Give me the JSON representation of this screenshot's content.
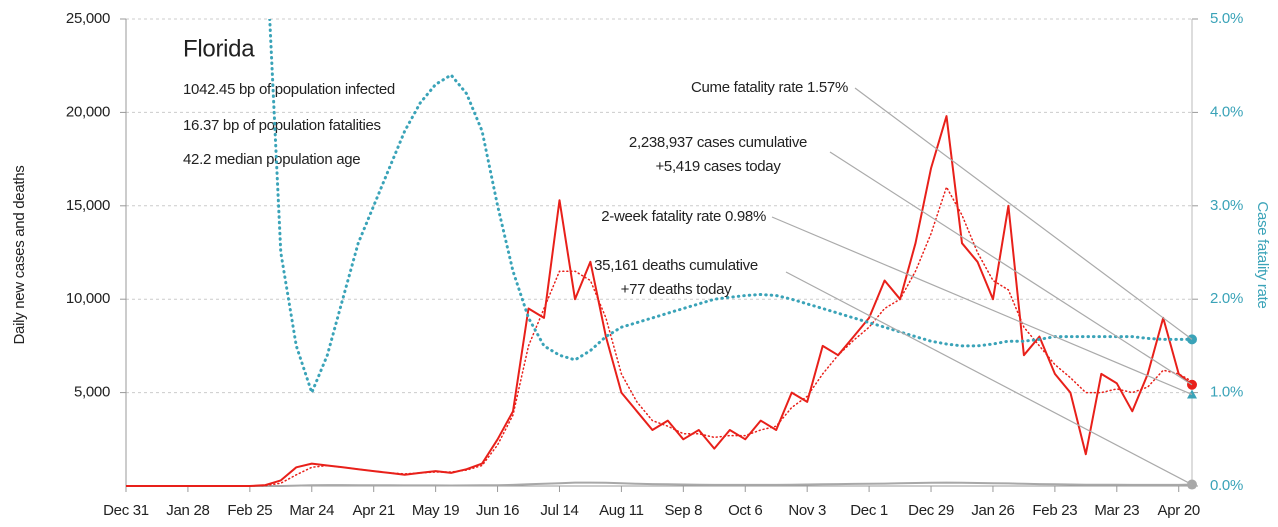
{
  "chart_data": {
    "type": "line",
    "info": {
      "title": "Florida",
      "lines": [
        "1042.45 bp of population infected",
        "16.37 bp of population fatalities",
        "42.2 median population age"
      ]
    },
    "ylabel": "Daily new cases and deaths",
    "y2label": "Case fatality rate",
    "x": [
      0,
      56,
      63,
      70,
      77,
      84,
      91,
      98,
      105,
      112,
      119,
      126,
      133,
      140,
      147,
      154,
      161,
      168,
      175,
      182,
      189,
      196,
      203,
      210,
      217,
      224,
      231,
      238,
      245,
      252,
      259,
      266,
      273,
      280,
      287,
      294,
      301,
      308,
      315,
      322,
      329,
      336,
      343,
      350,
      357,
      364,
      371,
      378,
      385,
      392,
      399,
      406,
      413,
      420,
      427,
      434,
      441,
      448,
      455,
      462,
      469,
      476,
      482
    ],
    "xlim": [
      0,
      482
    ],
    "xticks": [
      {
        "value": 0,
        "label": "Dec 31"
      },
      {
        "value": 28,
        "label": "Jan 28"
      },
      {
        "value": 56,
        "label": "Feb 25"
      },
      {
        "value": 84,
        "label": "Mar 24"
      },
      {
        "value": 112,
        "label": "Apr 21"
      },
      {
        "value": 140,
        "label": "May 19"
      },
      {
        "value": 168,
        "label": "Jun 16"
      },
      {
        "value": 196,
        "label": "Jul 14"
      },
      {
        "value": 224,
        "label": "Aug 11"
      },
      {
        "value": 252,
        "label": "Sep 8"
      },
      {
        "value": 280,
        "label": "Oct 6"
      },
      {
        "value": 308,
        "label": "Nov 3"
      },
      {
        "value": 336,
        "label": "Dec 1"
      },
      {
        "value": 364,
        "label": "Dec 29"
      },
      {
        "value": 392,
        "label": "Jan 26"
      },
      {
        "value": 420,
        "label": "Feb 23"
      },
      {
        "value": 448,
        "label": "Mar 23"
      },
      {
        "value": 476,
        "label": "Apr 20"
      }
    ],
    "ylim": [
      0,
      25000
    ],
    "yticks": [
      {
        "value": 5000,
        "label": "5,000"
      },
      {
        "value": 10000,
        "label": "10,000"
      },
      {
        "value": 15000,
        "label": "15,000"
      },
      {
        "value": 20000,
        "label": "20,000"
      },
      {
        "value": 25000,
        "label": "25,000"
      }
    ],
    "y2lim": [
      0,
      5
    ],
    "y2ticks": [
      {
        "value": 0,
        "label": "0.0%"
      },
      {
        "value": 1,
        "label": "1.0%"
      },
      {
        "value": 2,
        "label": "2.0%"
      },
      {
        "value": 3,
        "label": "3.0%"
      },
      {
        "value": 4,
        "label": "4.0%"
      },
      {
        "value": 5,
        "label": "5.0%"
      }
    ],
    "grid": true,
    "series": [
      {
        "color": "#e8201a",
        "style": "solid",
        "values": [
          0,
          0,
          50,
          300,
          1000,
          1200,
          1100,
          1000,
          900,
          800,
          700,
          600,
          700,
          800,
          700,
          900,
          1200,
          2500,
          4000,
          9500,
          9000,
          15300,
          10000,
          12000,
          8000,
          5000,
          4000,
          3000,
          3500,
          2500,
          3000,
          2000,
          3000,
          2500,
          3500,
          3000,
          5000,
          4500,
          7500,
          7000,
          8000,
          9000,
          11000,
          10000,
          13000,
          17000,
          19800,
          13000,
          12000,
          10000,
          15000,
          7000,
          8000,
          6000,
          5000,
          1700,
          6000,
          5500,
          4000,
          6000,
          9000,
          6000,
          5419
        ]
      },
      {
        "color": "#e8201a",
        "style": "dotted",
        "values": [
          0,
          0,
          20,
          150,
          600,
          1000,
          1100,
          1000,
          900,
          800,
          700,
          650,
          700,
          750,
          750,
          850,
          1100,
          2200,
          3800,
          7500,
          9500,
          11500,
          11500,
          11000,
          9000,
          6000,
          4500,
          3500,
          3200,
          2800,
          2800,
          2600,
          2700,
          2700,
          3000,
          3200,
          4200,
          4800,
          6000,
          7000,
          7800,
          8500,
          9500,
          10000,
          11500,
          13500,
          16000,
          14500,
          12500,
          11000,
          10500,
          8500,
          7500,
          6500,
          5800,
          5000,
          5000,
          5200,
          5000,
          5300,
          6200,
          6000,
          5600
        ]
      },
      {
        "color": "#a8a8a8",
        "style": "solid",
        "values": [
          0,
          0,
          0,
          2,
          20,
          40,
          50,
          50,
          45,
          40,
          35,
          30,
          30,
          30,
          25,
          30,
          35,
          40,
          60,
          90,
          120,
          150,
          180,
          180,
          170,
          150,
          120,
          100,
          90,
          80,
          70,
          60,
          60,
          60,
          60,
          60,
          70,
          80,
          90,
          100,
          110,
          120,
          130,
          150,
          160,
          170,
          180,
          170,
          160,
          150,
          140,
          120,
          100,
          90,
          80,
          70,
          70,
          70,
          60,
          60,
          60,
          60,
          77
        ]
      },
      {
        "color": "#3aa3b8",
        "style": "dotted",
        "axis": "y2",
        "values": [
          null,
          null,
          6,
          2.5,
          1.5,
          1.0,
          1.4,
          2.0,
          2.6,
          3.0,
          3.4,
          3.8,
          4.1,
          4.3,
          4.4,
          4.2,
          3.8,
          3.0,
          2.3,
          1.8,
          1.5,
          1.4,
          1.35,
          1.45,
          1.6,
          1.7,
          1.75,
          1.8,
          1.85,
          1.9,
          1.95,
          2.0,
          2.02,
          2.04,
          2.05,
          2.04,
          2.0,
          1.95,
          1.9,
          1.85,
          1.8,
          1.75,
          1.7,
          1.65,
          1.6,
          1.55,
          1.52,
          1.5,
          1.5,
          1.52,
          1.55,
          1.55,
          1.57,
          1.6,
          1.6,
          1.6,
          1.6,
          1.6,
          1.6,
          1.58,
          1.57,
          1.57,
          1.57
        ]
      }
    ],
    "two_week_fatality_rate": 0.98,
    "annotations": [
      "Cume fatality rate 1.57%",
      "2,238,937 cases cumulative",
      "+5,419 cases today",
      "2-week fatality rate 0.98%",
      "35,161 deaths cumulative",
      "+77 deaths today"
    ]
  }
}
